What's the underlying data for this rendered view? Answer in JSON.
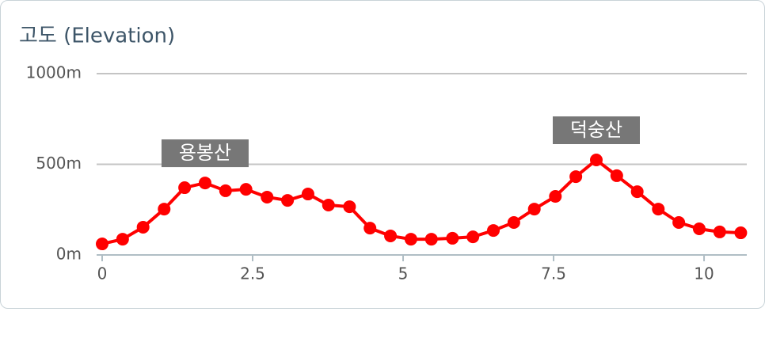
{
  "chart_data": {
    "type": "line",
    "title": "고도 (Elevation)",
    "x": [
      0,
      0.34,
      0.68,
      1.03,
      1.37,
      1.71,
      2.05,
      2.39,
      2.74,
      3.08,
      3.42,
      3.76,
      4.11,
      4.45,
      4.79,
      5.13,
      5.47,
      5.82,
      6.16,
      6.5,
      6.84,
      7.18,
      7.53,
      7.87,
      8.21,
      8.55,
      8.89,
      9.24,
      9.58,
      9.92,
      10.26,
      10.61
    ],
    "series": [
      {
        "color": "#ff0000",
        "values": [
          61,
          87,
          153,
          253,
          371,
          397,
          354,
          362,
          319,
          301,
          336,
          275,
          266,
          148,
          105,
          87,
          87,
          92,
          100,
          135,
          179,
          253,
          323,
          432,
          524,
          437,
          349,
          253,
          179,
          144,
          127,
          122
        ]
      }
    ],
    "xlim": [
      0,
      10.71
    ],
    "xticks": [
      0,
      2.5,
      5,
      7.5,
      10
    ],
    "ylim": [
      0,
      1000
    ],
    "yticks": [
      {
        "value": 0,
        "label": "0m"
      },
      {
        "value": 500,
        "label": "500m"
      },
      {
        "value": 1000,
        "label": "1000m"
      }
    ],
    "grid": true,
    "annotations": [
      {
        "text": "용봉산",
        "x": 1.71,
        "y": 397
      },
      {
        "text": "덕숭산",
        "x": 8.21,
        "y": 524
      }
    ]
  }
}
